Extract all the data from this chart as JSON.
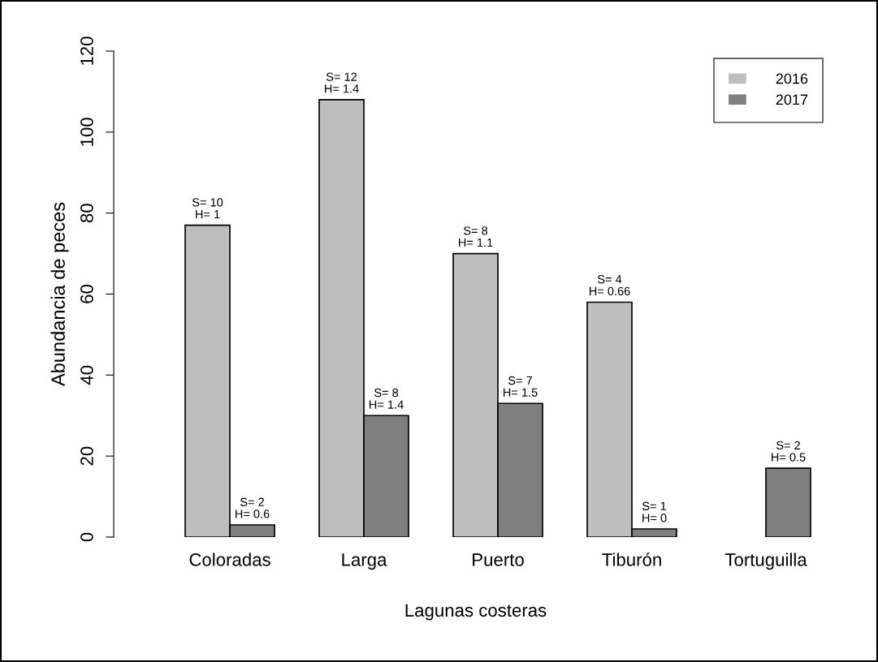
{
  "chart_data": {
    "type": "bar",
    "xlabel": "Lagunas costeras",
    "ylabel": "Abundancia de peces",
    "categories": [
      "Coloradas",
      "Larga",
      "Puerto",
      "Tiburón",
      "Tortuguilla"
    ],
    "series": [
      {
        "name": "2016",
        "color": "#bebebe",
        "values": [
          77,
          108,
          70,
          58,
          null
        ],
        "value_labels": [
          "S= 10\nH= 1",
          "S= 12\nH= 1.4",
          "S= 8\nH= 1.1",
          "S= 4\nH= 0.66",
          null
        ]
      },
      {
        "name": "2017",
        "color": "#7f7f7f",
        "values": [
          3,
          30,
          33,
          2,
          17
        ],
        "value_labels": [
          "S= 2\nH= 0.6",
          "S= 8\nH= 1.4",
          "S= 7\nH= 1.5",
          "S= 1\nH= 0",
          "S= 2\nH= 0.5"
        ]
      }
    ],
    "ylim": [
      0,
      120
    ],
    "yticks": [
      0,
      20,
      40,
      60,
      80,
      100,
      120
    ],
    "grid": false,
    "legend": "top right"
  }
}
